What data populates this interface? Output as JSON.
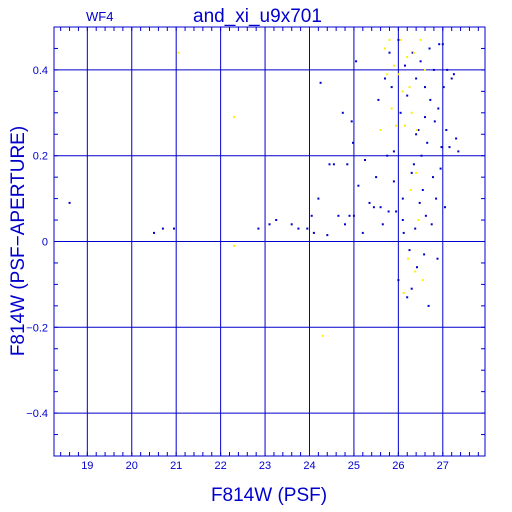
{
  "chart_data": {
    "type": "scatter",
    "title": "and_xi_u9x701",
    "subtitle": "WF4",
    "xlabel": "F814W (PSF)",
    "ylabel": "F814W (PSF−APERTURE)",
    "xlim": [
      18.25,
      27.95
    ],
    "ylim": [
      -0.5,
      0.5
    ],
    "x_ticks": [
      19,
      20,
      21,
      22,
      23,
      24,
      25,
      26,
      27
    ],
    "y_ticks": [
      -0.4,
      -0.2,
      0,
      0.2,
      0.4
    ],
    "y_tick_labels": [
      "−0.4",
      "−0.2",
      "0",
      "0.2",
      "0.4"
    ],
    "grid": true,
    "colors": {
      "frame": "#0000cc",
      "grid": "#0000cc",
      "text": "#0000cc",
      "blue_series": "#0000cc",
      "yellow_series": "#ffee00"
    },
    "series": [
      {
        "color": "blue",
        "points": [
          [
            18.6,
            0.09
          ],
          [
            20.5,
            0.02
          ],
          [
            20.7,
            0.03
          ],
          [
            20.95,
            0.03
          ],
          [
            22.85,
            0.03
          ],
          [
            23.1,
            0.04
          ],
          [
            23.25,
            0.05
          ],
          [
            23.6,
            0.04
          ],
          [
            23.75,
            0.03
          ],
          [
            23.95,
            0.03
          ],
          [
            24.05,
            0.06
          ],
          [
            24.1,
            0.02
          ],
          [
            24.2,
            0.1
          ],
          [
            24.25,
            0.37
          ],
          [
            24.4,
            0.015
          ],
          [
            24.45,
            0.18
          ],
          [
            24.55,
            0.18
          ],
          [
            24.65,
            0.06
          ],
          [
            24.75,
            0.3
          ],
          [
            24.8,
            0.04
          ],
          [
            24.85,
            0.18
          ],
          [
            24.9,
            0.06
          ],
          [
            24.95,
            0.28
          ],
          [
            24.98,
            0.23
          ],
          [
            25.0,
            0.06
          ],
          [
            25.05,
            0.42
          ],
          [
            25.1,
            0.13
          ],
          [
            25.2,
            0.02
          ],
          [
            25.25,
            0.19
          ],
          [
            25.35,
            0.09
          ],
          [
            25.45,
            0.08
          ],
          [
            25.5,
            0.15
          ],
          [
            25.55,
            0.33
          ],
          [
            25.6,
            0.08
          ],
          [
            25.65,
            0.04
          ],
          [
            25.7,
            0.38
          ],
          [
            25.75,
            0.2
          ],
          [
            25.78,
            0.07
          ],
          [
            25.8,
            0.44
          ],
          [
            25.85,
            0.36
          ],
          [
            25.9,
            0.14
          ],
          [
            25.95,
            0.07
          ],
          [
            26.0,
            0.47
          ],
          [
            26.0,
            -0.09
          ],
          [
            26.05,
            0.3
          ],
          [
            26.1,
            0.1
          ],
          [
            26.12,
            0.02
          ],
          [
            26.15,
            0.41
          ],
          [
            26.2,
            0.34
          ],
          [
            26.25,
            -0.02
          ],
          [
            26.3,
            0.16
          ],
          [
            26.32,
            0.44
          ],
          [
            26.35,
            0.18
          ],
          [
            26.38,
            0.03
          ],
          [
            26.4,
            0.38
          ],
          [
            26.42,
            -0.06
          ],
          [
            26.45,
            0.26
          ],
          [
            26.48,
            0.09
          ],
          [
            26.5,
            0.42
          ],
          [
            26.52,
            0.2
          ],
          [
            26.55,
            0.12
          ],
          [
            26.58,
            -0.03
          ],
          [
            26.6,
            0.36
          ],
          [
            26.62,
            0.06
          ],
          [
            26.65,
            0.23
          ],
          [
            26.68,
            -0.15
          ],
          [
            26.7,
            0.45
          ],
          [
            26.72,
            0.33
          ],
          [
            26.75,
            0.04
          ],
          [
            26.78,
            0.15
          ],
          [
            26.8,
            0.4
          ],
          [
            26.82,
            0.28
          ],
          [
            26.85,
            0.1
          ],
          [
            26.88,
            -0.04
          ],
          [
            26.9,
            0.31
          ],
          [
            26.92,
            0.46
          ],
          [
            26.95,
            0.17
          ],
          [
            26.97,
            0.22
          ],
          [
            27.0,
            0.46
          ],
          [
            27.02,
            0.36
          ],
          [
            27.05,
            0.08
          ],
          [
            27.08,
            0.26
          ],
          [
            27.1,
            0.4
          ],
          [
            27.15,
            0.22
          ],
          [
            27.2,
            0.38
          ],
          [
            27.25,
            0.39
          ],
          [
            27.3,
            0.24
          ],
          [
            27.35,
            0.21
          ],
          [
            26.3,
            -0.11
          ],
          [
            26.2,
            -0.13
          ],
          [
            26.1,
            0.05
          ],
          [
            25.9,
            0.21
          ],
          [
            26.6,
            0.29
          ],
          [
            26.4,
            0.25
          ]
        ]
      },
      {
        "color": "yellow",
        "points": [
          [
            21.05,
            0.44
          ],
          [
            22.3,
            0.29
          ],
          [
            22.3,
            -0.01
          ],
          [
            24.3,
            -0.22
          ],
          [
            25.7,
            0.45
          ],
          [
            25.8,
            0.47
          ],
          [
            25.9,
            0.41
          ],
          [
            26.0,
            0.39
          ],
          [
            26.05,
            0.47
          ],
          [
            26.1,
            0.35
          ],
          [
            26.15,
            0.27
          ],
          [
            26.2,
            0.43
          ],
          [
            26.22,
            -0.04
          ],
          [
            26.25,
            0.36
          ],
          [
            26.3,
            0.3
          ],
          [
            26.35,
            0.44
          ],
          [
            26.38,
            -0.07
          ],
          [
            26.4,
            0.16
          ],
          [
            26.45,
            0.05
          ],
          [
            26.5,
            0.47
          ],
          [
            26.55,
            -0.09
          ],
          [
            25.95,
            0.27
          ],
          [
            25.75,
            0.39
          ],
          [
            26.6,
            0.4
          ],
          [
            26.28,
            0.12
          ],
          [
            25.85,
            0.31
          ],
          [
            26.12,
            -0.12
          ],
          [
            26.42,
            0.26
          ],
          [
            25.6,
            0.26
          ]
        ]
      }
    ]
  }
}
